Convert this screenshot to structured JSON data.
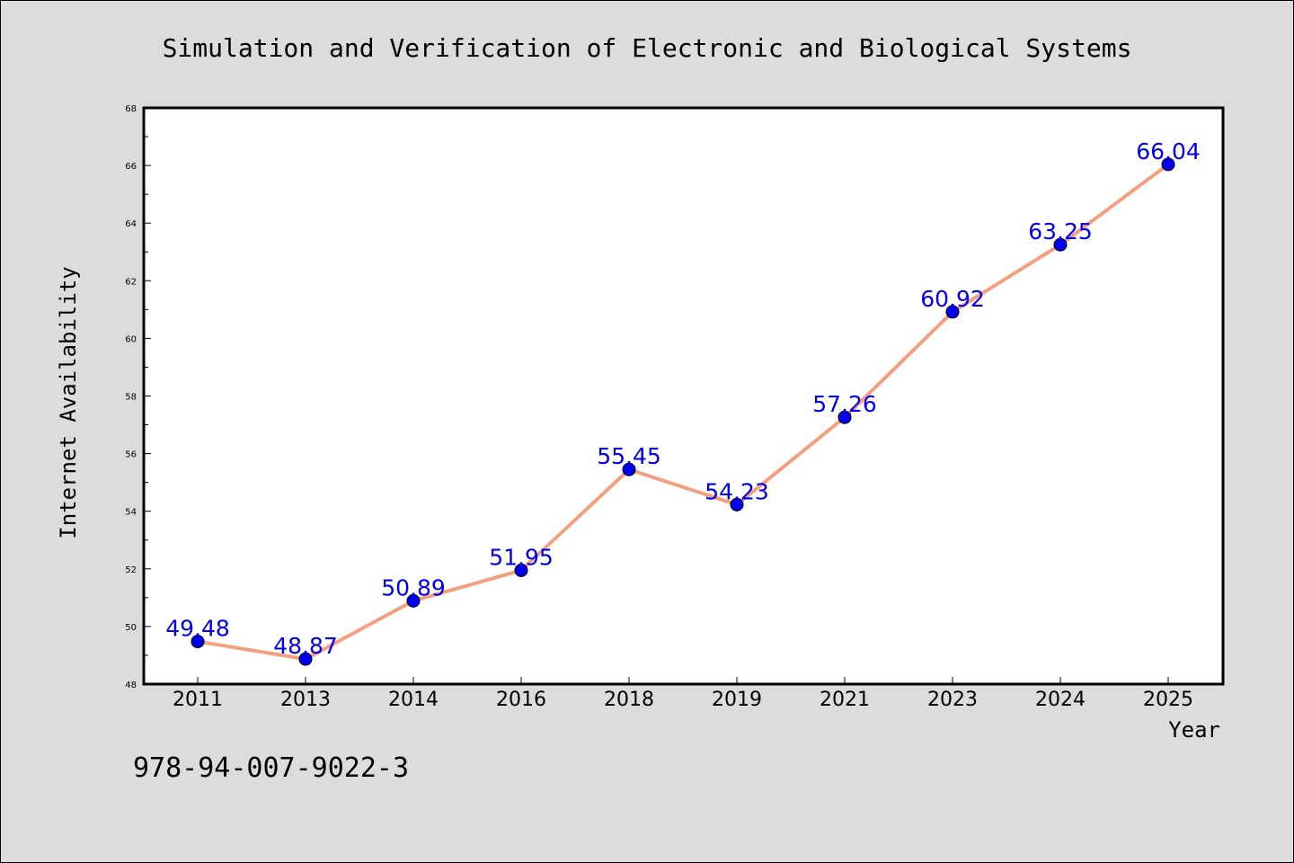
{
  "chart_data": {
    "type": "line",
    "title": "Simulation and Verification of Electronic and Biological Systems",
    "xlabel": "Year",
    "ylabel": "Internet Availability",
    "categories": [
      "2011",
      "2013",
      "2014",
      "2016",
      "2018",
      "2019",
      "2021",
      "2023",
      "2024",
      "2025"
    ],
    "series": [
      {
        "values": [
          49.48,
          48.87,
          50.89,
          51.95,
          55.45,
          54.23,
          57.26,
          60.92,
          63.25,
          66.04
        ],
        "line_color": "#f4a07f",
        "marker_color": "#0000ee",
        "label_color": "#0000ee"
      }
    ],
    "data_labels": [
      "49.48",
      "48.87",
      "50.89",
      "51.95",
      "55.45",
      "54.23",
      "57.26",
      "60.92",
      "63.25",
      "66.04"
    ],
    "ylim": [
      48,
      68
    ],
    "yticks": [
      "48",
      "50",
      "52",
      "54",
      "56",
      "58",
      "60",
      "62",
      "64",
      "66",
      "68"
    ],
    "grid": false,
    "legend": "none"
  },
  "footnote": "978-94-007-9022-3",
  "colors": {
    "background": "#dcdcdc",
    "plot_area": "#ffffff",
    "axis": "#000000"
  }
}
